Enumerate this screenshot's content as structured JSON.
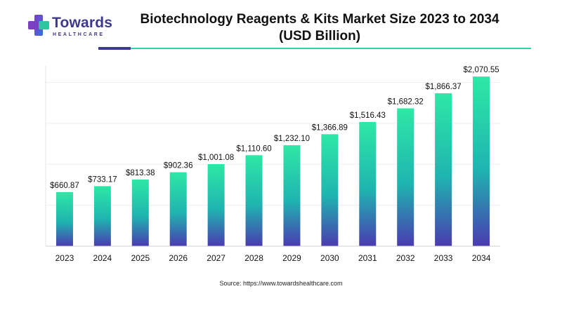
{
  "logo": {
    "name": "Towards",
    "sub": "HEALTHCARE"
  },
  "title_line1": "Biotechnology Reagents & Kits Market Size 2023 to 2034",
  "title_line2": "(USD Billion)",
  "source": "Source: https://www.towardshealthcare.com",
  "colors": {
    "bar_top": "#2ee8a5",
    "bar_mid": "#1fb4b0",
    "bar_bottom": "#4a3bb0",
    "accent_dark": "#3d3a8a",
    "accent_teal": "#2fd3a6"
  },
  "chart_data": {
    "type": "bar",
    "title": "Biotechnology Reagents & Kits Market Size 2023 to 2034",
    "subtitle": "(USD Billion)",
    "categories": [
      "2023",
      "2024",
      "2025",
      "2026",
      "2027",
      "2028",
      "2029",
      "2030",
      "2031",
      "2032",
      "2033",
      "2034"
    ],
    "values": [
      660.87,
      733.17,
      813.38,
      902.36,
      1001.08,
      1110.6,
      1232.1,
      1366.89,
      1516.43,
      1682.32,
      1866.37,
      2070.55
    ],
    "labels": [
      "$660.87",
      "$733.17",
      "$813.38",
      "$902.36",
      "$1,001.08",
      "$1,110.60",
      "$1,232.10",
      "$1,366.89",
      "$1,516.43",
      "$1,682.32",
      "$1,866.37",
      "$2,070.55"
    ],
    "ylim": [
      0,
      2200
    ],
    "grid": true,
    "xlabel": "",
    "ylabel": ""
  }
}
